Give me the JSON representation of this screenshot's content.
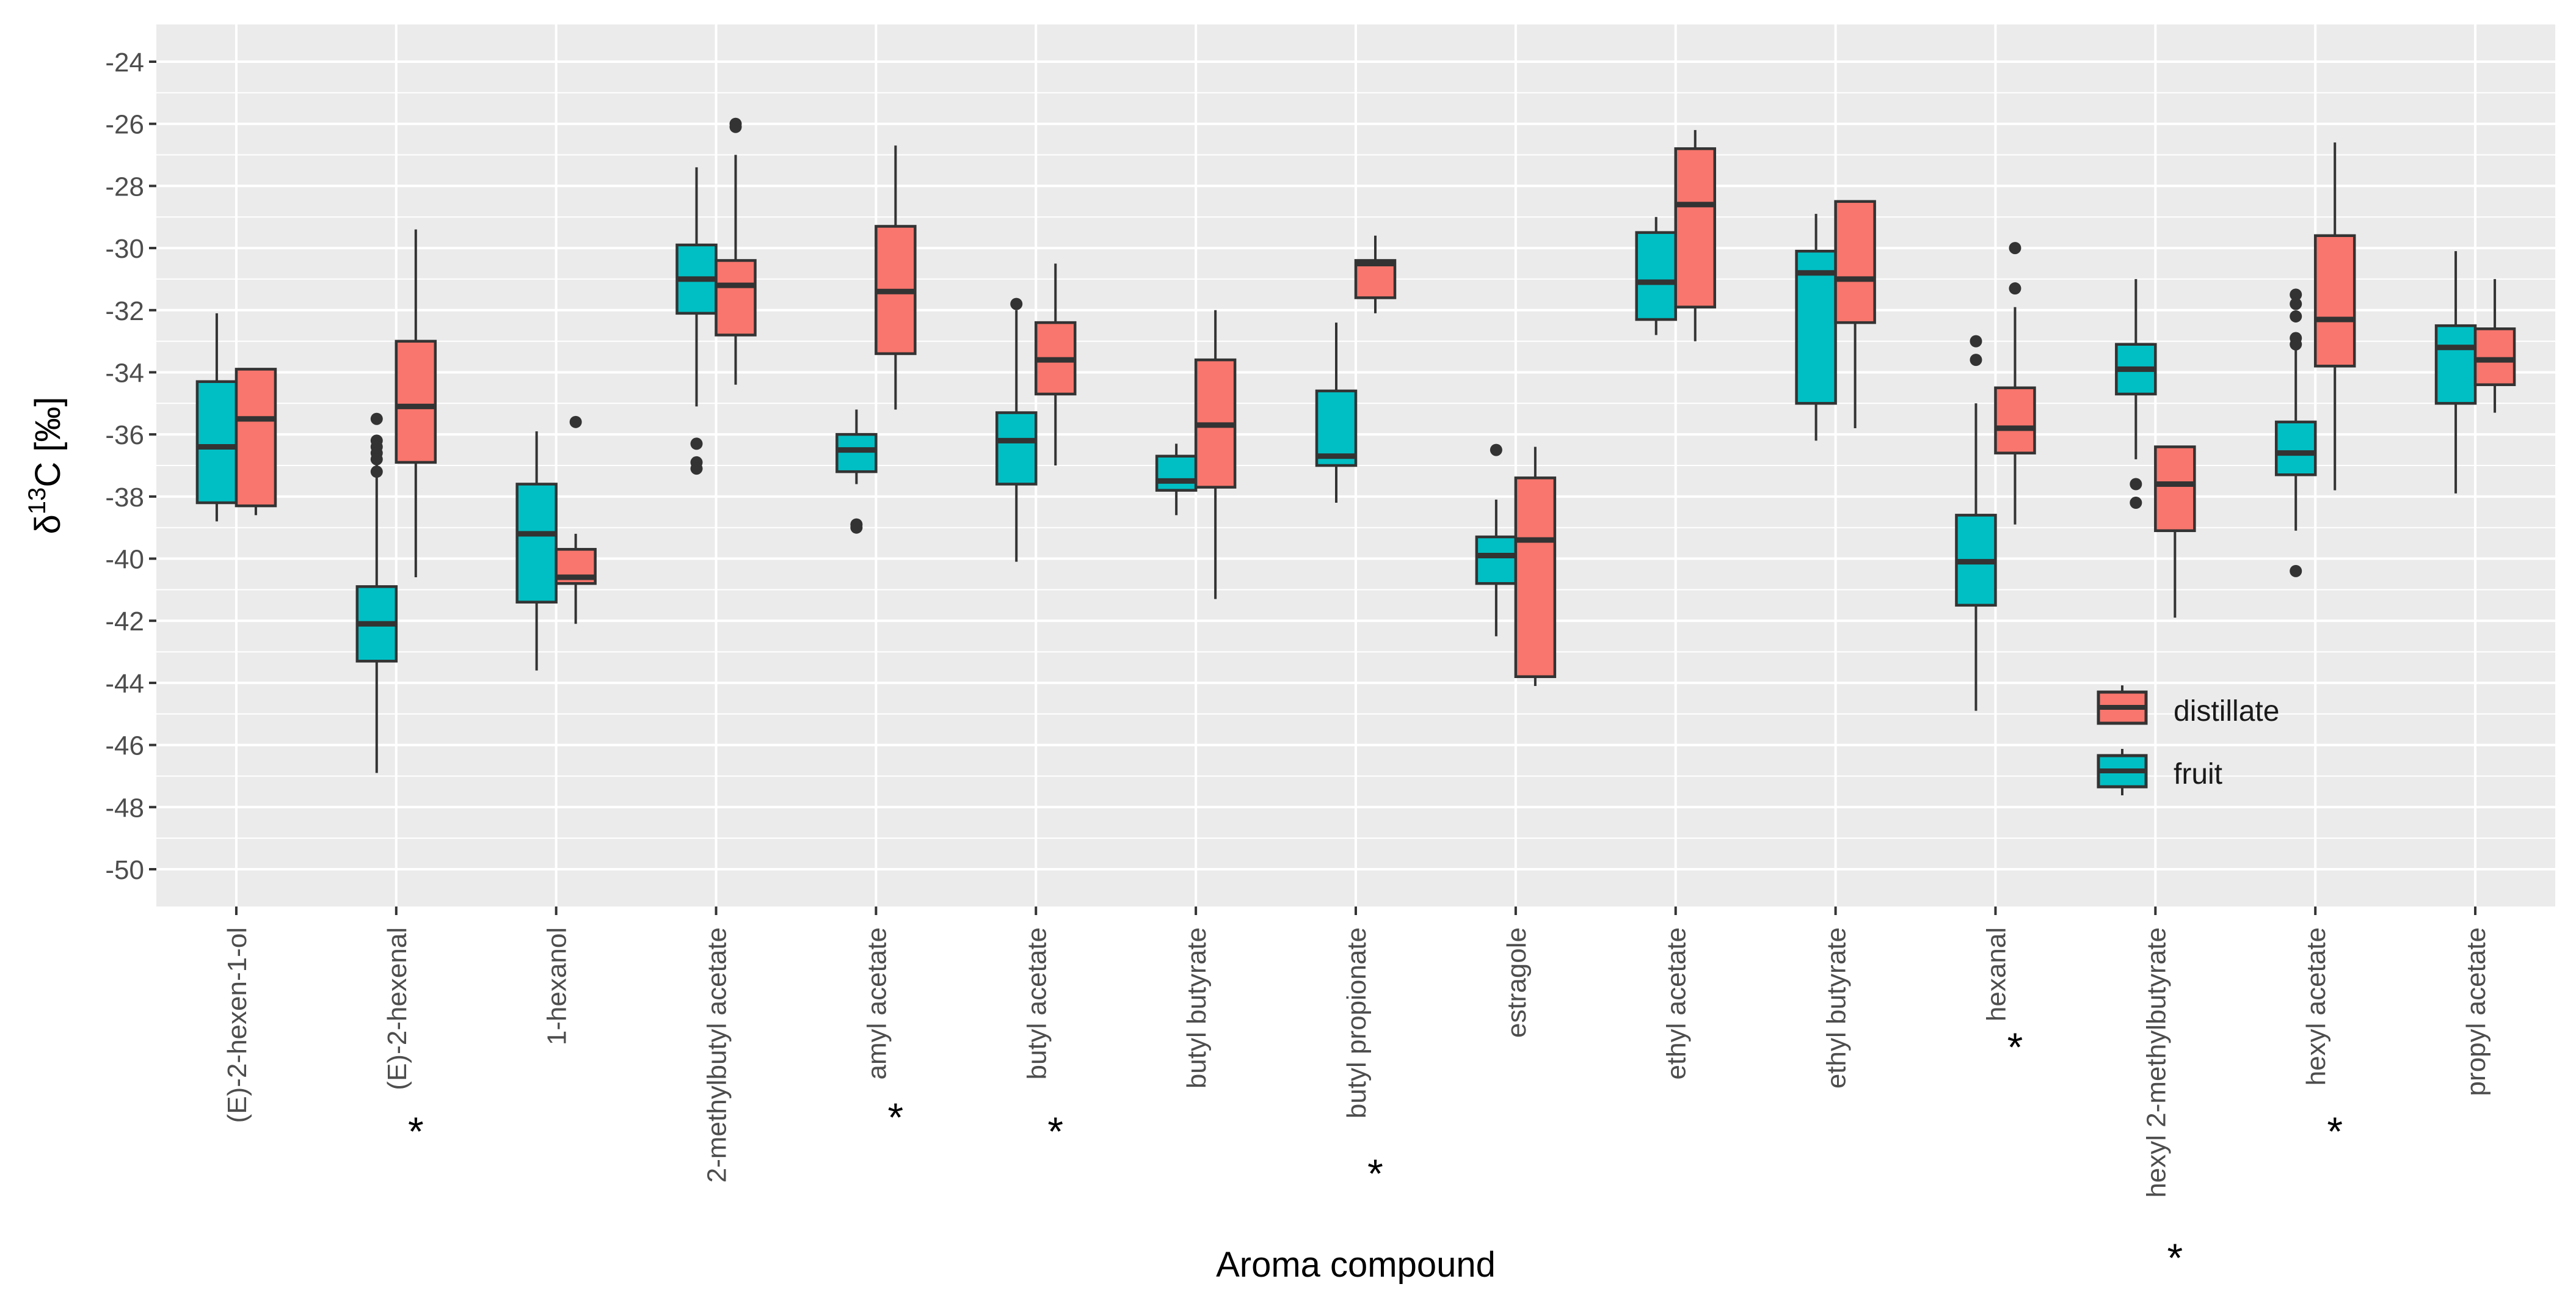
{
  "chart_data": {
    "type": "boxplot",
    "title": "",
    "xlabel": "Aroma compound",
    "ylabel_main": "δ",
    "ylabel_sup": "13",
    "ylabel_rest": "C [‰]",
    "ylim": [
      -51.2,
      -22.8
    ],
    "yticks": [
      -24,
      -26,
      -28,
      -30,
      -32,
      -34,
      -36,
      -38,
      -40,
      -42,
      -44,
      -46,
      -48,
      -50
    ],
    "ytick_labels": [
      "-24",
      "-26",
      "-28",
      "-30",
      "-32",
      "-34",
      "-36",
      "-38",
      "-40",
      "-42",
      "-44",
      "-46",
      "-48",
      "-50"
    ],
    "categories": [
      "(E)-2-hexen-1-ol",
      "(E)-2-hexenal",
      "1-hexanol",
      "2-methylbutyl acetate",
      "amyl acetate",
      "butyl acetate",
      "butyl butyrate",
      "butyl propionate",
      "estragole",
      "ethyl acetate",
      "ethyl butyrate",
      "hexanal",
      "hexyl 2-methylbutyrate",
      "hexyl acetate",
      "propyl acetate"
    ],
    "significant": [
      false,
      true,
      false,
      false,
      true,
      true,
      false,
      true,
      false,
      false,
      false,
      true,
      true,
      true,
      false
    ],
    "significance_marker": "*",
    "legend": {
      "position": "bottom-right",
      "entries": [
        {
          "name": "distillate",
          "color": "#F8766D"
        },
        {
          "name": "fruit",
          "color": "#00BFC4"
        }
      ]
    },
    "series": [
      {
        "name": "fruit",
        "color": "#00BFC4",
        "boxes": [
          {
            "min": -38.8,
            "q1": -38.2,
            "median": -36.4,
            "q3": -34.3,
            "max": -32.1,
            "outliers": []
          },
          {
            "min": -46.9,
            "q1": -43.3,
            "median": -42.1,
            "q3": -40.9,
            "max": -36.2,
            "outliers": [
              -35.5,
              -36.2,
              -36.4,
              -36.6,
              -36.8,
              -37.2
            ]
          },
          {
            "min": -43.6,
            "q1": -41.4,
            "median": -39.2,
            "q3": -37.6,
            "max": -35.9,
            "outliers": []
          },
          {
            "min": -35.1,
            "q1": -32.1,
            "median": -31.0,
            "q3": -29.9,
            "max": -27.4,
            "outliers": [
              -36.3,
              -36.9,
              -37.1
            ]
          },
          {
            "min": -37.6,
            "q1": -37.2,
            "median": -36.5,
            "q3": -36.0,
            "max": -35.2,
            "outliers": [
              -38.9,
              -39.0
            ]
          },
          {
            "min": -40.1,
            "q1": -37.6,
            "median": -36.2,
            "q3": -35.3,
            "max": -32.0,
            "outliers": [
              -31.8
            ]
          },
          {
            "min": -38.6,
            "q1": -37.8,
            "median": -37.5,
            "q3": -36.7,
            "max": -36.3,
            "outliers": []
          },
          {
            "min": -38.2,
            "q1": -37.0,
            "median": -36.7,
            "q3": -34.6,
            "max": -32.4,
            "outliers": []
          },
          {
            "min": -42.5,
            "q1": -40.8,
            "median": -39.9,
            "q3": -39.3,
            "max": -38.1,
            "outliers": [
              -36.5
            ]
          },
          {
            "min": -32.8,
            "q1": -32.3,
            "median": -31.1,
            "q3": -29.5,
            "max": -29.0,
            "outliers": []
          },
          {
            "min": -36.2,
            "q1": -35.0,
            "median": -30.8,
            "q3": -30.1,
            "max": -28.9,
            "outliers": []
          },
          {
            "min": -44.9,
            "q1": -41.5,
            "median": -40.1,
            "q3": -38.6,
            "max": -35.0,
            "outliers": [
              -33.0,
              -33.6
            ]
          },
          {
            "min": -36.8,
            "q1": -34.7,
            "median": -33.9,
            "q3": -33.1,
            "max": -31.0,
            "outliers": [
              -37.6,
              -38.2
            ]
          },
          {
            "min": -39.1,
            "q1": -37.3,
            "median": -36.6,
            "q3": -35.6,
            "max": -33.2,
            "outliers": [
              -31.5,
              -31.8,
              -32.2,
              -32.9,
              -33.1,
              -40.4
            ]
          },
          {
            "min": -37.9,
            "q1": -35.0,
            "median": -33.2,
            "q3": -32.5,
            "max": -30.1,
            "outliers": []
          }
        ]
      },
      {
        "name": "distillate",
        "color": "#F8766D",
        "boxes": [
          {
            "min": -38.6,
            "q1": -38.3,
            "median": -35.5,
            "q3": -33.9,
            "max": -33.9,
            "outliers": []
          },
          {
            "min": -40.6,
            "q1": -36.9,
            "median": -35.1,
            "q3": -33.0,
            "max": -29.4,
            "outliers": []
          },
          {
            "min": -42.1,
            "q1": -40.8,
            "median": -40.6,
            "q3": -39.7,
            "max": -39.2,
            "outliers": [
              -35.6
            ]
          },
          {
            "min": -34.4,
            "q1": -32.8,
            "median": -31.2,
            "q3": -30.4,
            "max": -27.0,
            "outliers": [
              -26.0,
              -26.1
            ]
          },
          {
            "min": -35.2,
            "q1": -33.4,
            "median": -31.4,
            "q3": -29.3,
            "max": -26.7,
            "outliers": []
          },
          {
            "min": -37.0,
            "q1": -34.7,
            "median": -33.6,
            "q3": -32.4,
            "max": -30.5,
            "outliers": []
          },
          {
            "min": -41.3,
            "q1": -37.7,
            "median": -35.7,
            "q3": -33.6,
            "max": -32.0,
            "outliers": []
          },
          {
            "min": -32.1,
            "q1": -31.6,
            "median": -30.5,
            "q3": -30.4,
            "max": -29.6,
            "outliers": []
          },
          {
            "min": -44.1,
            "q1": -43.8,
            "median": -39.4,
            "q3": -37.4,
            "max": -36.4,
            "outliers": []
          },
          {
            "min": -33.0,
            "q1": -31.9,
            "median": -28.6,
            "q3": -26.8,
            "max": -26.2,
            "outliers": []
          },
          {
            "min": -35.8,
            "q1": -32.4,
            "median": -31.0,
            "q3": -28.5,
            "max": -28.5,
            "outliers": []
          },
          {
            "min": -38.9,
            "q1": -36.6,
            "median": -35.8,
            "q3": -34.5,
            "max": -31.9,
            "outliers": [
              -30.0,
              -31.3
            ]
          },
          {
            "min": -41.9,
            "q1": -39.1,
            "median": -37.6,
            "q3": -36.4,
            "max": -36.4,
            "outliers": []
          },
          {
            "min": -37.8,
            "q1": -33.8,
            "median": -32.3,
            "q3": -29.6,
            "max": -26.6,
            "outliers": []
          },
          {
            "min": -35.3,
            "q1": -34.4,
            "median": -33.6,
            "q3": -32.6,
            "max": -31.0,
            "outliers": []
          }
        ]
      }
    ]
  }
}
